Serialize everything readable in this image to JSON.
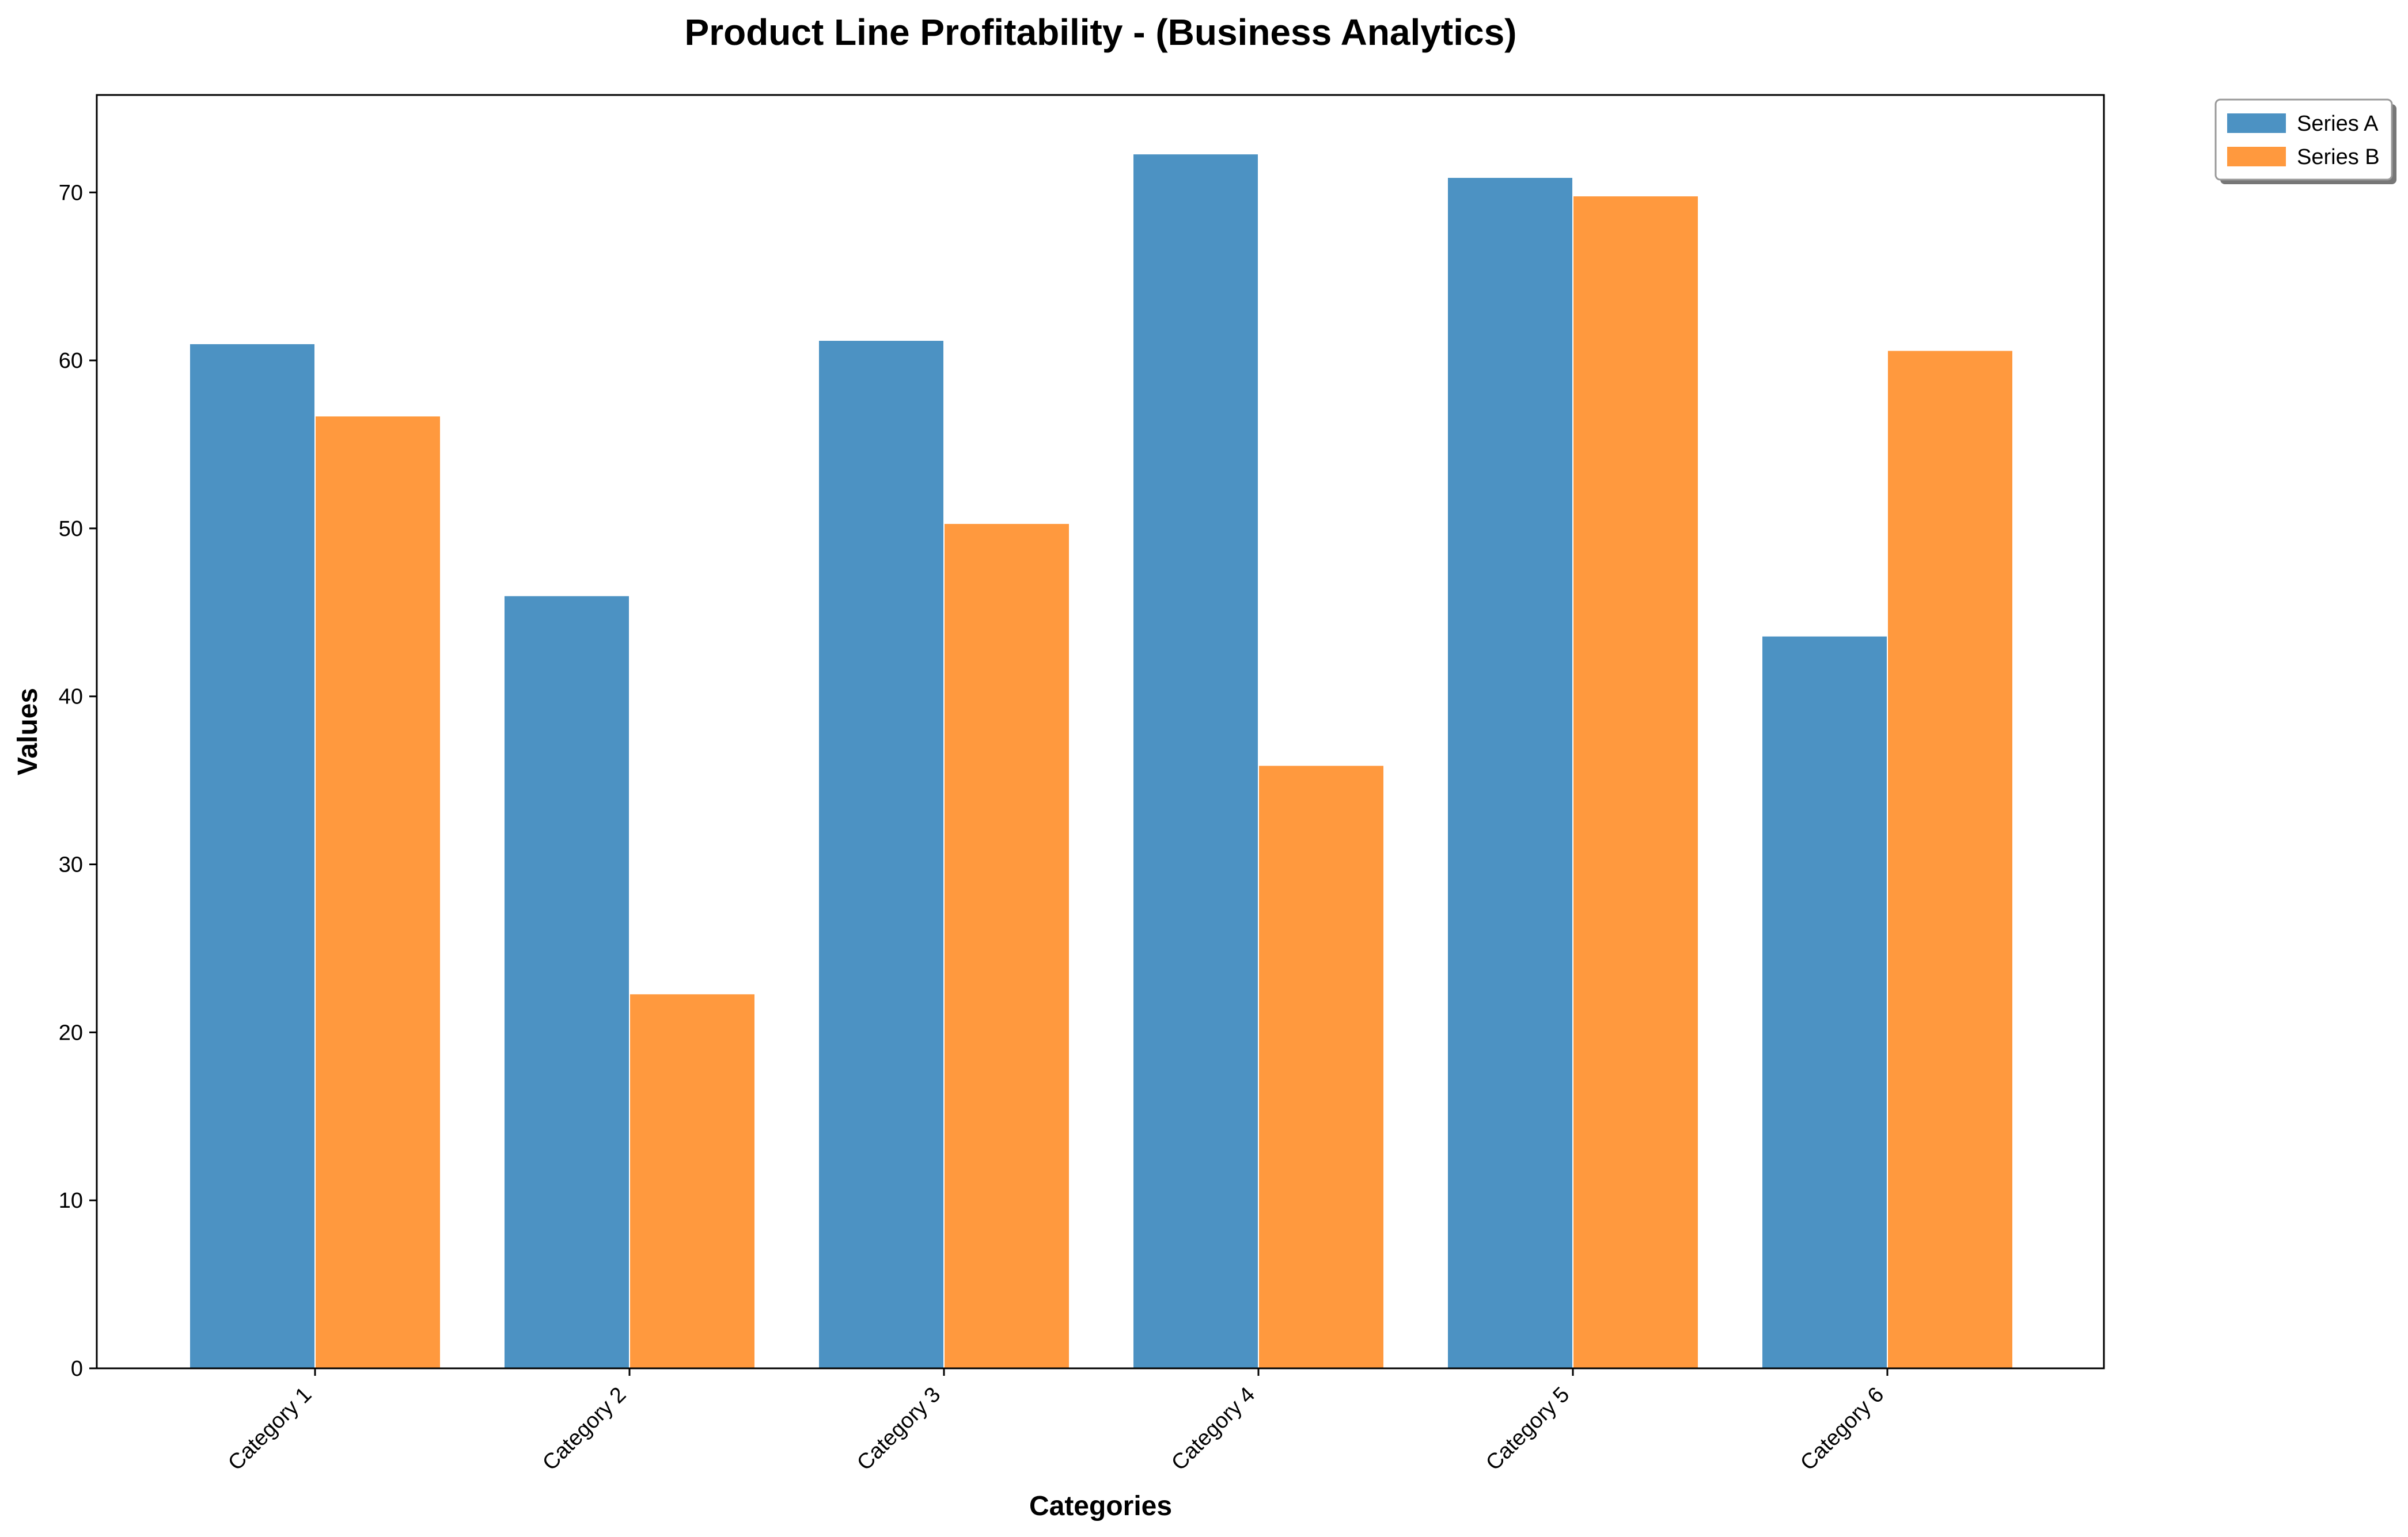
{
  "chart_data": {
    "type": "bar",
    "title": "Product Line Profitability - (Business Analytics)",
    "xlabel": "Categories",
    "ylabel": "Values",
    "categories": [
      "Category 1",
      "Category 2",
      "Category 3",
      "Category 4",
      "Category 5",
      "Category 6"
    ],
    "series": [
      {
        "name": "Series A",
        "color": "#4c92c3",
        "values": [
          61.0,
          46.0,
          61.2,
          72.3,
          70.9,
          43.6
        ]
      },
      {
        "name": "Series B",
        "color": "#ff993e",
        "values": [
          56.7,
          22.3,
          50.3,
          35.9,
          69.8,
          60.6
        ]
      }
    ],
    "ylim": [
      0,
      75.8
    ],
    "yticks": [
      0,
      10,
      20,
      30,
      40,
      50,
      60,
      70
    ],
    "grid": false,
    "legend_position": "outside-top-right"
  }
}
